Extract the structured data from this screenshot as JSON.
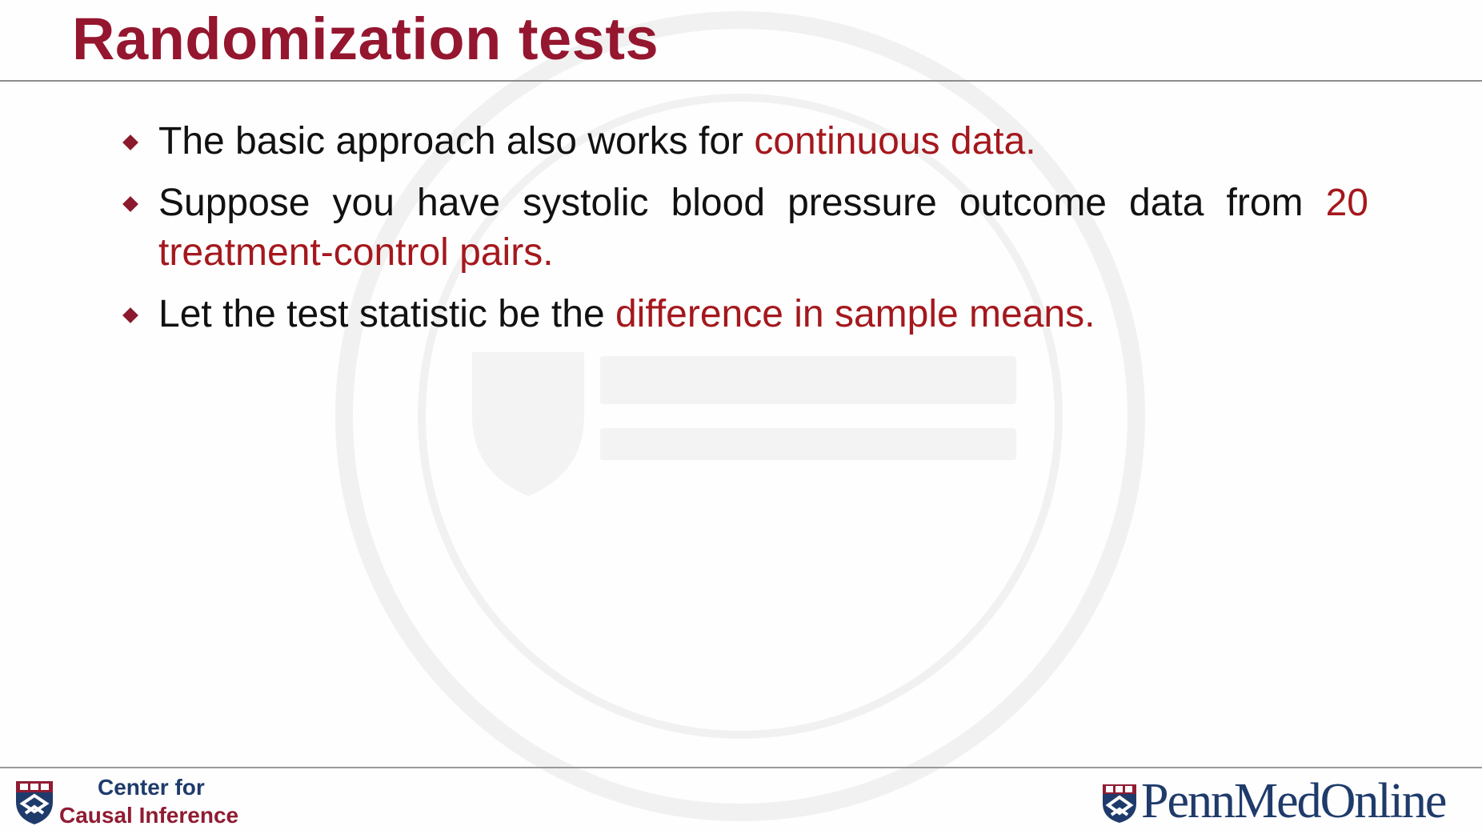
{
  "slide": {
    "title": "Randomization tests",
    "bullets": [
      {
        "parts": [
          {
            "text": "The basic approach also works for ",
            "emphasis": false
          },
          {
            "text": "continuous data.",
            "emphasis": true
          }
        ]
      },
      {
        "parts": [
          {
            "text": "Suppose you have systolic blood pressure outcome data from ",
            "emphasis": false
          },
          {
            "text": "20 treatment-control pairs.",
            "emphasis": true
          }
        ]
      },
      {
        "parts": [
          {
            "text": "Let the test statistic be the ",
            "emphasis": false
          },
          {
            "text": "difference in sample means.",
            "emphasis": true
          }
        ]
      }
    ]
  },
  "footer": {
    "left_logo_line1": "Center for",
    "left_logo_line2": "Causal Inference",
    "right_logo_text": "PennMedOnline"
  },
  "colors": {
    "title": "#95162f",
    "emphasis": "#a4181d",
    "body_text": "#111111",
    "penn_blue": "#1f3b6b",
    "penn_red": "#8f1c33"
  },
  "icons": {
    "bullet": "diamond-bullet-icon",
    "left_logo": "penn-shield-icon",
    "right_logo": "penn-shield-icon",
    "watermark": "university-seal-watermark"
  }
}
